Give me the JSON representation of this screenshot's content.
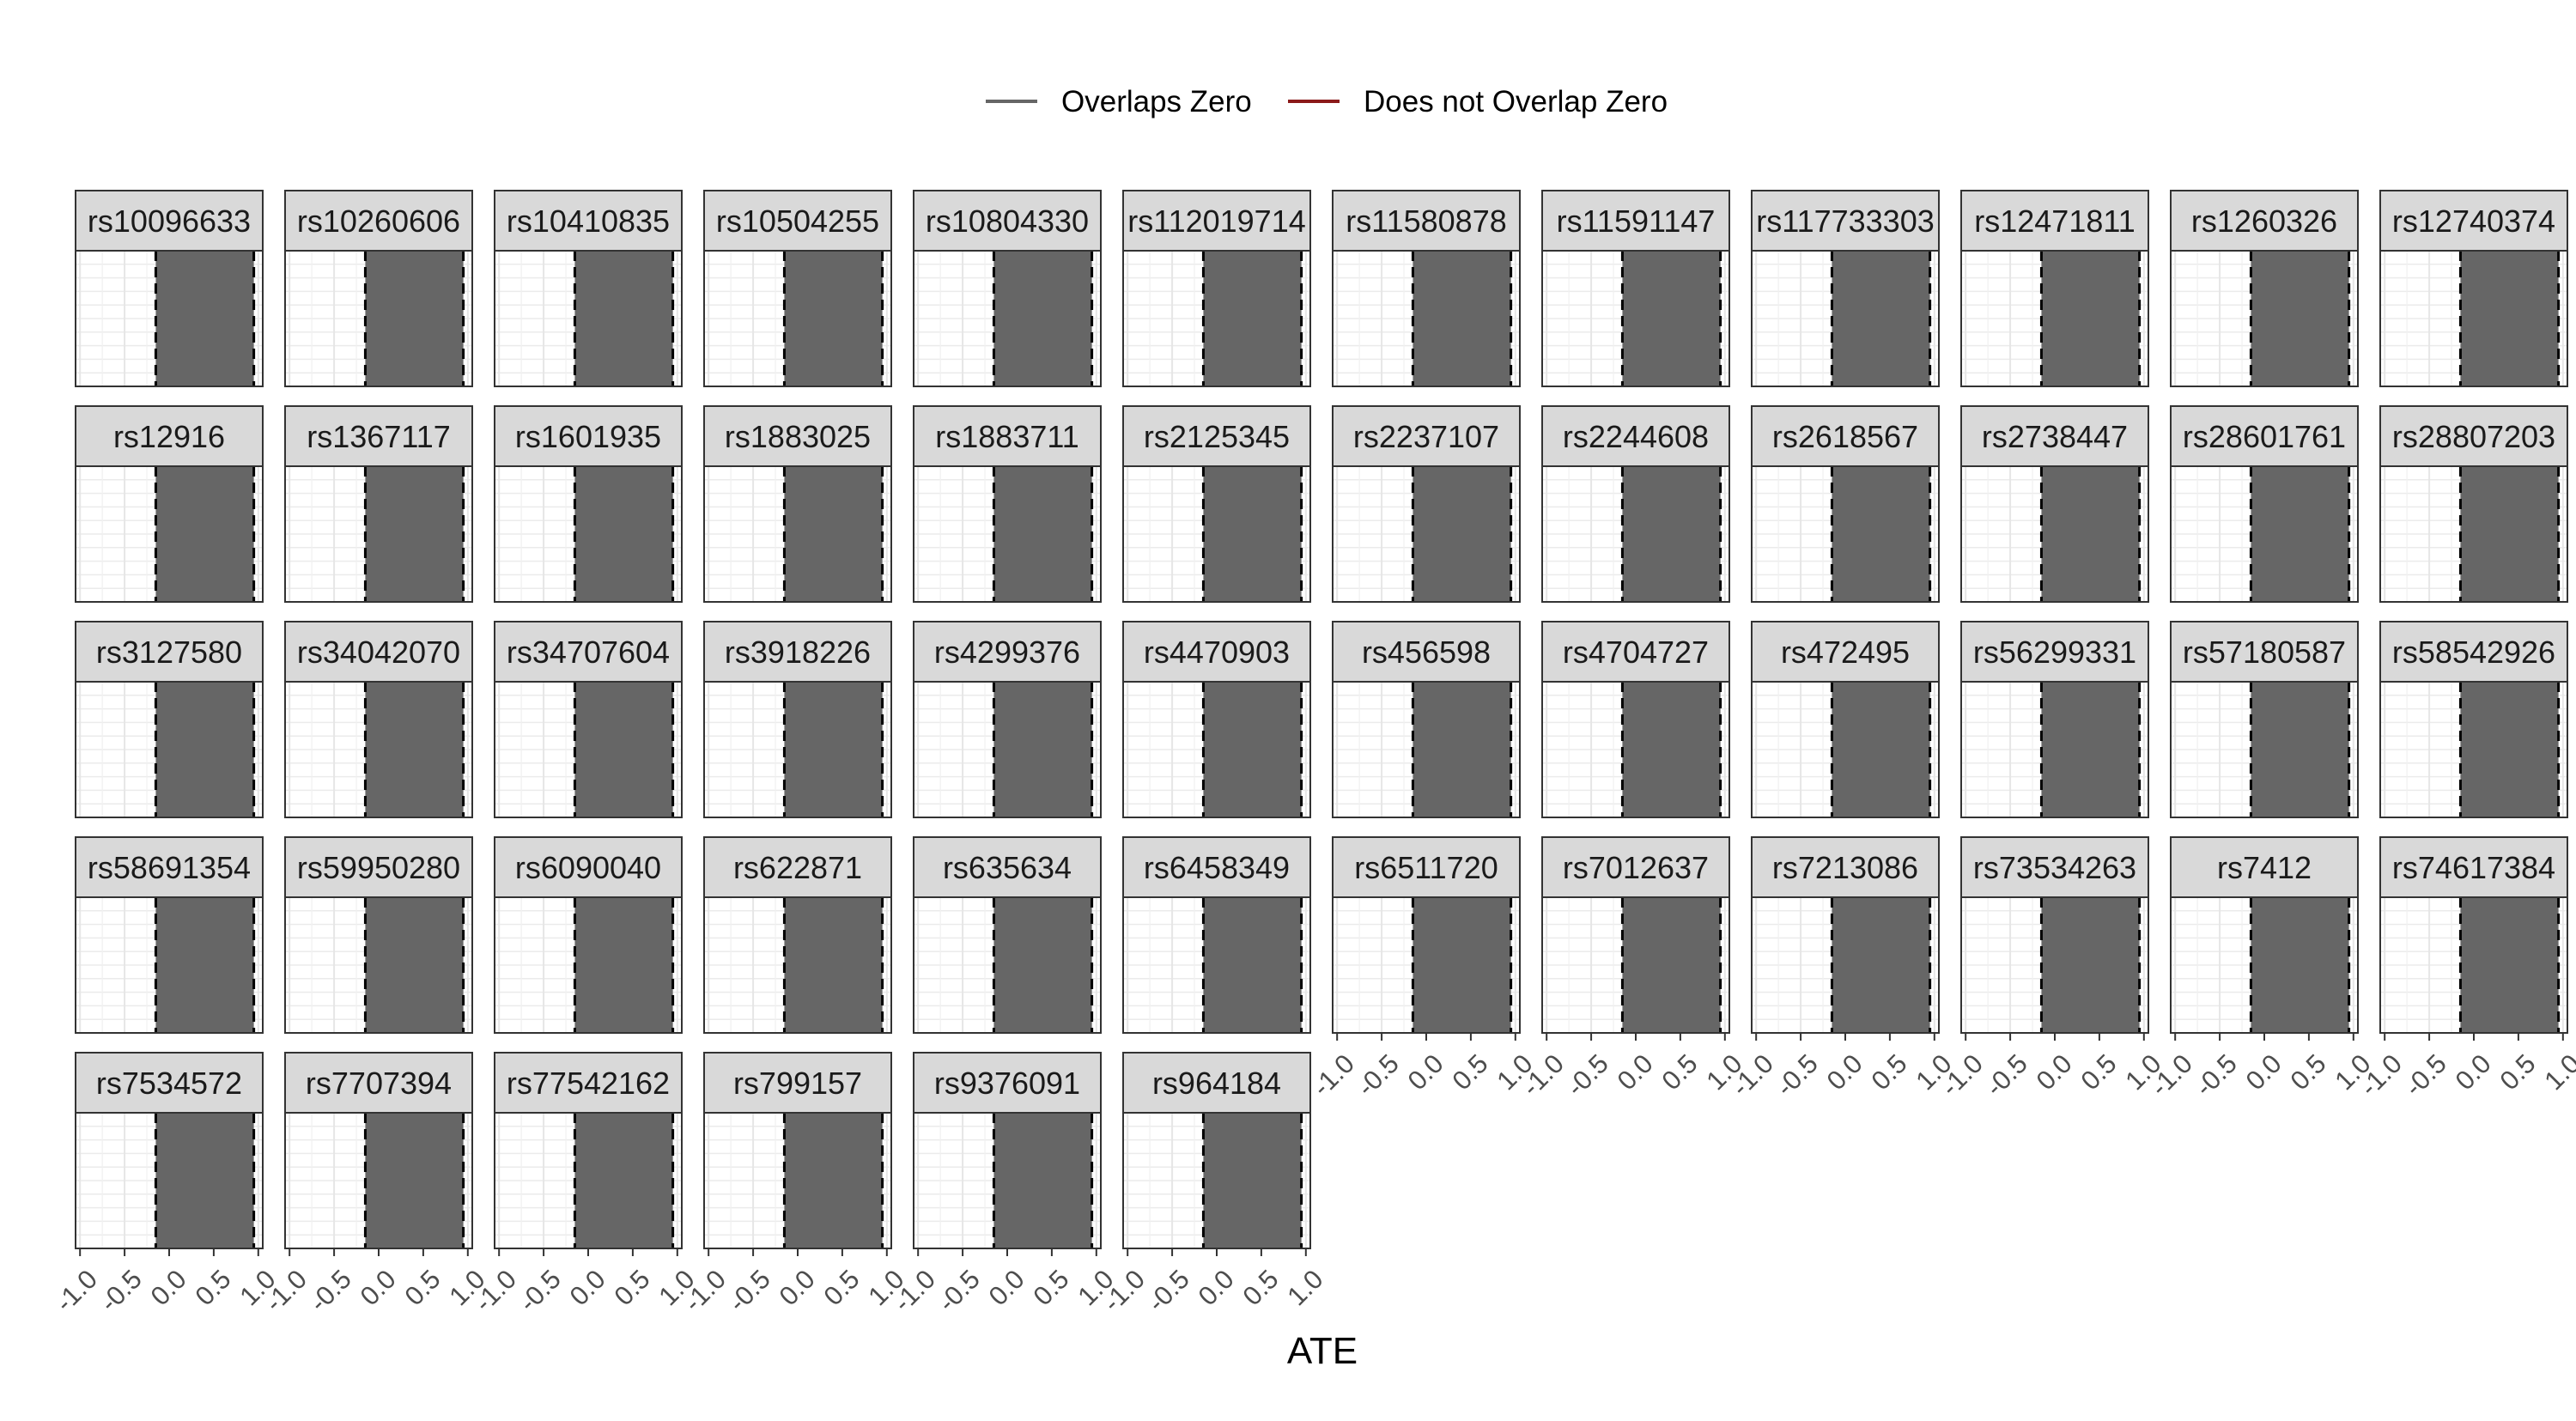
{
  "chart_data": {
    "type": "faceted-interval",
    "xlabel": "ATE",
    "x_ticks": [
      -1.0,
      -0.5,
      0.0,
      0.5,
      1.0
    ],
    "x_tick_labels": [
      "-1.0",
      "-0.5",
      "0.0",
      "0.5",
      "1.0"
    ],
    "xlim": [
      -1.05,
      1.05
    ],
    "grid": true,
    "legend": {
      "position": "top",
      "entries": [
        {
          "label": "Overlaps Zero",
          "color": "#666666"
        },
        {
          "label": "Does not Overlap Zero",
          "color": "#8B1A1A"
        }
      ]
    },
    "reference_lines": [
      -0.15,
      0.95
    ],
    "panels": [
      {
        "name": "rs10096633",
        "low": -0.15,
        "high": 0.95,
        "group": "Overlaps Zero"
      },
      {
        "name": "rs10260606",
        "low": -0.15,
        "high": 0.95,
        "group": "Overlaps Zero"
      },
      {
        "name": "rs10410835",
        "low": -0.15,
        "high": 0.95,
        "group": "Overlaps Zero"
      },
      {
        "name": "rs10504255",
        "low": -0.15,
        "high": 0.95,
        "group": "Overlaps Zero"
      },
      {
        "name": "rs10804330",
        "low": -0.15,
        "high": 0.95,
        "group": "Overlaps Zero"
      },
      {
        "name": "rs112019714",
        "low": -0.15,
        "high": 0.95,
        "group": "Overlaps Zero"
      },
      {
        "name": "rs11580878",
        "low": -0.15,
        "high": 0.95,
        "group": "Overlaps Zero"
      },
      {
        "name": "rs11591147",
        "low": -0.15,
        "high": 0.95,
        "group": "Overlaps Zero"
      },
      {
        "name": "rs117733303",
        "low": -0.15,
        "high": 0.95,
        "group": "Overlaps Zero"
      },
      {
        "name": "rs12471811",
        "low": -0.15,
        "high": 0.95,
        "group": "Overlaps Zero"
      },
      {
        "name": "rs1260326",
        "low": -0.15,
        "high": 0.95,
        "group": "Overlaps Zero"
      },
      {
        "name": "rs12740374",
        "low": -0.15,
        "high": 0.95,
        "group": "Overlaps Zero"
      },
      {
        "name": "rs12916",
        "low": -0.15,
        "high": 0.95,
        "group": "Overlaps Zero"
      },
      {
        "name": "rs1367117",
        "low": -0.15,
        "high": 0.95,
        "group": "Overlaps Zero"
      },
      {
        "name": "rs1601935",
        "low": -0.15,
        "high": 0.95,
        "group": "Overlaps Zero"
      },
      {
        "name": "rs1883025",
        "low": -0.15,
        "high": 0.95,
        "group": "Overlaps Zero"
      },
      {
        "name": "rs1883711",
        "low": -0.15,
        "high": 0.95,
        "group": "Overlaps Zero"
      },
      {
        "name": "rs2125345",
        "low": -0.15,
        "high": 0.95,
        "group": "Overlaps Zero"
      },
      {
        "name": "rs2237107",
        "low": -0.15,
        "high": 0.95,
        "group": "Overlaps Zero"
      },
      {
        "name": "rs2244608",
        "low": -0.15,
        "high": 0.95,
        "group": "Overlaps Zero"
      },
      {
        "name": "rs2618567",
        "low": -0.15,
        "high": 0.95,
        "group": "Overlaps Zero"
      },
      {
        "name": "rs2738447",
        "low": -0.15,
        "high": 0.95,
        "group": "Overlaps Zero"
      },
      {
        "name": "rs28601761",
        "low": -0.15,
        "high": 0.95,
        "group": "Overlaps Zero"
      },
      {
        "name": "rs28807203",
        "low": -0.15,
        "high": 0.95,
        "group": "Overlaps Zero"
      },
      {
        "name": "rs3127580",
        "low": -0.15,
        "high": 0.95,
        "group": "Overlaps Zero"
      },
      {
        "name": "rs34042070",
        "low": -0.15,
        "high": 0.95,
        "group": "Overlaps Zero"
      },
      {
        "name": "rs34707604",
        "low": -0.15,
        "high": 0.95,
        "group": "Overlaps Zero"
      },
      {
        "name": "rs3918226",
        "low": -0.15,
        "high": 0.95,
        "group": "Overlaps Zero"
      },
      {
        "name": "rs4299376",
        "low": -0.15,
        "high": 0.95,
        "group": "Overlaps Zero"
      },
      {
        "name": "rs4470903",
        "low": -0.15,
        "high": 0.95,
        "group": "Overlaps Zero"
      },
      {
        "name": "rs456598",
        "low": -0.15,
        "high": 0.95,
        "group": "Overlaps Zero"
      },
      {
        "name": "rs4704727",
        "low": -0.15,
        "high": 0.95,
        "group": "Overlaps Zero"
      },
      {
        "name": "rs472495",
        "low": -0.15,
        "high": 0.95,
        "group": "Overlaps Zero"
      },
      {
        "name": "rs56299331",
        "low": -0.15,
        "high": 0.95,
        "group": "Overlaps Zero"
      },
      {
        "name": "rs57180587",
        "low": -0.15,
        "high": 0.95,
        "group": "Overlaps Zero"
      },
      {
        "name": "rs58542926",
        "low": -0.15,
        "high": 0.95,
        "group": "Overlaps Zero"
      },
      {
        "name": "rs58691354",
        "low": -0.15,
        "high": 0.95,
        "group": "Overlaps Zero"
      },
      {
        "name": "rs59950280",
        "low": -0.15,
        "high": 0.95,
        "group": "Overlaps Zero"
      },
      {
        "name": "rs6090040",
        "low": -0.15,
        "high": 0.95,
        "group": "Overlaps Zero"
      },
      {
        "name": "rs622871",
        "low": -0.15,
        "high": 0.95,
        "group": "Overlaps Zero"
      },
      {
        "name": "rs635634",
        "low": -0.15,
        "high": 0.95,
        "group": "Overlaps Zero"
      },
      {
        "name": "rs6458349",
        "low": -0.15,
        "high": 0.95,
        "group": "Overlaps Zero"
      },
      {
        "name": "rs6511720",
        "low": -0.15,
        "high": 0.95,
        "group": "Overlaps Zero"
      },
      {
        "name": "rs7012637",
        "low": -0.15,
        "high": 0.95,
        "group": "Overlaps Zero"
      },
      {
        "name": "rs7213086",
        "low": -0.15,
        "high": 0.95,
        "group": "Overlaps Zero"
      },
      {
        "name": "rs73534263",
        "low": -0.15,
        "high": 0.95,
        "group": "Overlaps Zero"
      },
      {
        "name": "rs7412",
        "low": -0.15,
        "high": 0.95,
        "group": "Overlaps Zero"
      },
      {
        "name": "rs74617384",
        "low": -0.15,
        "high": 0.95,
        "group": "Overlaps Zero"
      },
      {
        "name": "rs7534572",
        "low": -0.15,
        "high": 0.95,
        "group": "Overlaps Zero"
      },
      {
        "name": "rs7707394",
        "low": -0.15,
        "high": 0.95,
        "group": "Overlaps Zero"
      },
      {
        "name": "rs77542162",
        "low": -0.15,
        "high": 0.95,
        "group": "Overlaps Zero"
      },
      {
        "name": "rs799157",
        "low": -0.15,
        "high": 0.95,
        "group": "Overlaps Zero"
      },
      {
        "name": "rs9376091",
        "low": -0.15,
        "high": 0.95,
        "group": "Overlaps Zero"
      },
      {
        "name": "rs964184",
        "low": -0.15,
        "high": 0.95,
        "group": "Overlaps Zero"
      }
    ]
  }
}
